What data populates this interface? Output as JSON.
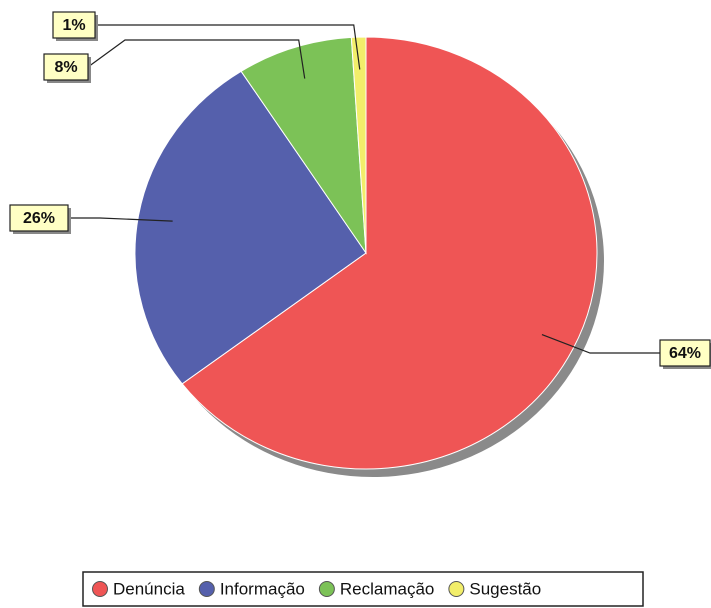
{
  "chart_data": {
    "type": "pie",
    "categories": [
      "Denúncia",
      "Informação",
      "Reclamação",
      "Sugestão"
    ],
    "values": [
      64,
      26,
      8,
      1
    ],
    "value_labels": [
      "64%",
      "26%",
      "8%",
      "1%"
    ],
    "colors": [
      "#ef5555",
      "#5560ac",
      "#7cc257",
      "#f2ee6a"
    ],
    "legend": "bottom"
  }
}
